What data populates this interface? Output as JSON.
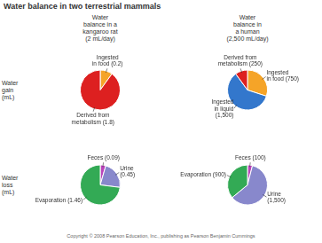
{
  "title": "Water balance in two terrestrial mammals",
  "column_labels": [
    "Water\nbalance in a\nkangaroo rat\n(2 mL/day)",
    "Water\nbalance in\na human\n(2,500 mL/day)"
  ],
  "row_labels": [
    "Water\ngain\n(mL)",
    "Water\nloss\n(mL)"
  ],
  "footnote": "Copyright © 2008 Pearson Education, Inc., publishing as Pearson Benjamin Cummings",
  "chart_data": [
    {
      "type": "pie",
      "categories": [
        "Ingested\nin food (0.2)",
        "Derived from\nmetabolism (1.8)"
      ],
      "values": [
        0.2,
        1.8
      ],
      "colors": [
        "#f5a428",
        "#dd2020"
      ]
    },
    {
      "type": "pie",
      "categories": [
        "Ingested\nin food (750)",
        "Ingested\nin liquid\n(1,500)",
        "Derived from\nmetabolism (250)"
      ],
      "values": [
        750,
        1500,
        250
      ],
      "colors": [
        "#f5a428",
        "#3377cc",
        "#dd2020"
      ]
    },
    {
      "type": "pie",
      "categories": [
        "Feces (0.09)",
        "Urine\n(0.45)",
        "Evaporation (1.46)"
      ],
      "values": [
        0.09,
        0.45,
        1.46
      ],
      "colors": [
        "#bb44bb",
        "#8888cc",
        "#33aa55"
      ]
    },
    {
      "type": "pie",
      "categories": [
        "Feces (100)",
        "Urine\n(1,500)",
        "Evaporation (900)"
      ],
      "values": [
        100,
        1500,
        900
      ],
      "colors": [
        "#bb44bb",
        "#8888cc",
        "#33aa55"
      ]
    }
  ]
}
